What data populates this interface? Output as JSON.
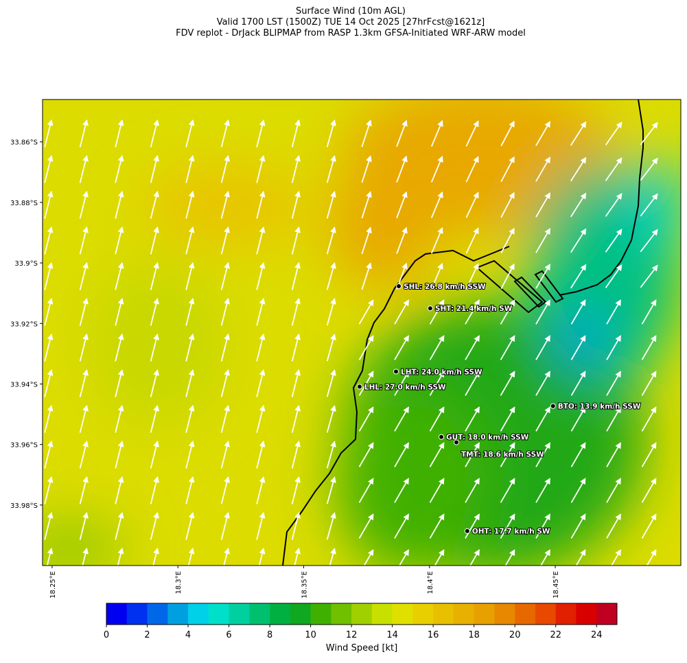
{
  "chart_data": {
    "type": "map",
    "title": [
      "Surface Wind (10m AGL)",
      "Valid 1700 LST (1500Z) TUE 14 Oct 2025 [27hrFcst@1621z]",
      "FDV replot - DrJack BLIPMAP from RASP 1.3km GFSA-Initiated WRF-ARW model"
    ],
    "xlim": [
      18.2462,
      18.4999
    ],
    "ylim": [
      -34.0,
      -33.846
    ],
    "xticks": [
      {
        "value": 18.25,
        "label": "18.25°E"
      },
      {
        "value": 18.3,
        "label": "18.3°E"
      },
      {
        "value": 18.35,
        "label": "18.35°E"
      },
      {
        "value": 18.4,
        "label": "18.4°E"
      },
      {
        "value": 18.45,
        "label": "18.45°E"
      }
    ],
    "yticks": [
      {
        "value": -33.86,
        "label": "33.86°S"
      },
      {
        "value": -33.88,
        "label": "33.88°S"
      },
      {
        "value": -33.9,
        "label": "33.9°S"
      },
      {
        "value": -33.92,
        "label": "33.92°S"
      },
      {
        "value": -33.94,
        "label": "33.94°S"
      },
      {
        "value": -33.96,
        "label": "33.96°S"
      },
      {
        "value": -33.98,
        "label": "33.98°S"
      }
    ],
    "stations": [
      {
        "label": "SHL: 26.8 km/h SSW",
        "lon": 18.3878,
        "lat": -33.9077
      },
      {
        "label": "SHT: 21.4 km/h SW",
        "lon": 18.4003,
        "lat": -33.915
      },
      {
        "label": "LHT: 24.0 km/h SSW",
        "lon": 18.3867,
        "lat": -33.9359
      },
      {
        "label": "LHL: 27.0 km/h SSW",
        "lon": 18.3722,
        "lat": -33.9409
      },
      {
        "label": "BTO: 13.9 km/h SSW",
        "lon": 18.4491,
        "lat": -33.9473
      },
      {
        "label": "GUT: 18.0 km/h SSW",
        "lon": 18.4047,
        "lat": -33.9575
      },
      {
        "label": "TMT: 18.6 km/h SSW",
        "lon": 18.4107,
        "lat": -33.9593
      },
      {
        "label": "OHT: 17.7 km/h SW",
        "lon": 18.415,
        "lat": -33.9886
      }
    ],
    "colorbar": {
      "label": "Wind Speed [kt]",
      "lim": [
        0,
        25
      ],
      "ticks": [
        0,
        2,
        4,
        6,
        8,
        10,
        12,
        14,
        16,
        18,
        20,
        22,
        24
      ],
      "colors": [
        "#0000f0",
        "#0030f0",
        "#0068e8",
        "#00a0e0",
        "#00d0e8",
        "#00e0c8",
        "#00d0a0",
        "#00c070",
        "#00b040",
        "#10a820",
        "#40b000",
        "#70c000",
        "#a0d000",
        "#c8e000",
        "#e0e000",
        "#e8d000",
        "#e8c000",
        "#e8b000",
        "#e8a000",
        "#e88800",
        "#e86800",
        "#e84800",
        "#e02000",
        "#d80000",
        "#c00020"
      ]
    }
  }
}
